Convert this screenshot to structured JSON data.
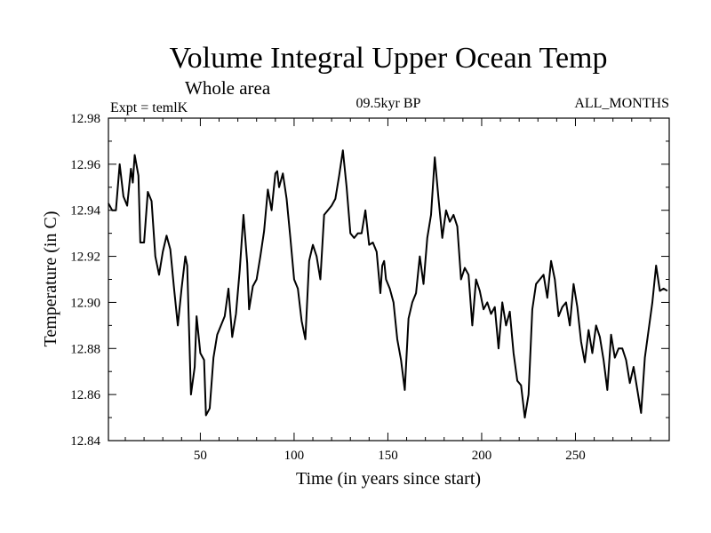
{
  "chart_data": {
    "type": "line",
    "title": "Volume Integral Upper Ocean Temp",
    "subtitle": "Whole area",
    "left_annotation": "Expt = temlK",
    "center_annotation": "09.5kyr BP",
    "right_annotation": "ALL_MONTHS",
    "xlabel": "Time (in years since start)",
    "ylabel": "Temperature (in C)",
    "xlim": [
      1,
      300
    ],
    "ylim": [
      12.84,
      12.98
    ],
    "xticks": [
      50,
      100,
      150,
      200,
      250
    ],
    "xtick_labels": [
      "50",
      "100",
      "150",
      "200",
      "250"
    ],
    "yticks": [
      12.84,
      12.86,
      12.88,
      12.9,
      12.92,
      12.94,
      12.96,
      12.98
    ],
    "ytick_labels": [
      "12.84",
      "12.86",
      "12.88",
      "12.90",
      "12.92",
      "12.94",
      "12.96",
      "12.98"
    ],
    "grid": false,
    "series": [
      {
        "name": "Volume Integral Upper Ocean Temp",
        "color": "#000000",
        "points": [
          [
            1,
            12.943
          ],
          [
            3,
            12.94
          ],
          [
            5,
            12.94
          ],
          [
            7,
            12.96
          ],
          [
            9,
            12.946
          ],
          [
            11,
            12.942
          ],
          [
            13,
            12.958
          ],
          [
            14,
            12.952
          ],
          [
            15,
            12.964
          ],
          [
            17,
            12.955
          ],
          [
            18,
            12.926
          ],
          [
            20,
            12.926
          ],
          [
            22,
            12.948
          ],
          [
            24,
            12.944
          ],
          [
            26,
            12.92
          ],
          [
            28,
            12.912
          ],
          [
            30,
            12.922
          ],
          [
            32,
            12.929
          ],
          [
            34,
            12.923
          ],
          [
            36,
            12.906
          ],
          [
            38,
            12.89
          ],
          [
            40,
            12.906
          ],
          [
            42,
            12.92
          ],
          [
            43,
            12.916
          ],
          [
            45,
            12.86
          ],
          [
            47,
            12.872
          ],
          [
            48,
            12.894
          ],
          [
            50,
            12.878
          ],
          [
            52,
            12.875
          ],
          [
            53,
            12.851
          ],
          [
            55,
            12.854
          ],
          [
            57,
            12.876
          ],
          [
            59,
            12.886
          ],
          [
            61,
            12.89
          ],
          [
            63,
            12.894
          ],
          [
            65,
            12.906
          ],
          [
            67,
            12.885
          ],
          [
            69,
            12.895
          ],
          [
            71,
            12.914
          ],
          [
            73,
            12.938
          ],
          [
            75,
            12.917
          ],
          [
            76,
            12.897
          ],
          [
            78,
            12.907
          ],
          [
            80,
            12.91
          ],
          [
            82,
            12.92
          ],
          [
            84,
            12.931
          ],
          [
            86,
            12.949
          ],
          [
            88,
            12.94
          ],
          [
            90,
            12.956
          ],
          [
            91,
            12.957
          ],
          [
            92,
            12.95
          ],
          [
            94,
            12.956
          ],
          [
            96,
            12.945
          ],
          [
            98,
            12.928
          ],
          [
            100,
            12.91
          ],
          [
            102,
            12.906
          ],
          [
            104,
            12.892
          ],
          [
            106,
            12.884
          ],
          [
            108,
            12.918
          ],
          [
            110,
            12.925
          ],
          [
            112,
            12.92
          ],
          [
            114,
            12.91
          ],
          [
            116,
            12.938
          ],
          [
            118,
            12.94
          ],
          [
            120,
            12.942
          ],
          [
            122,
            12.945
          ],
          [
            124,
            12.955
          ],
          [
            126,
            12.966
          ],
          [
            128,
            12.95
          ],
          [
            130,
            12.93
          ],
          [
            132,
            12.928
          ],
          [
            134,
            12.93
          ],
          [
            136,
            12.93
          ],
          [
            138,
            12.94
          ],
          [
            140,
            12.925
          ],
          [
            142,
            12.926
          ],
          [
            144,
            12.922
          ],
          [
            146,
            12.904
          ],
          [
            147,
            12.916
          ],
          [
            148,
            12.918
          ],
          [
            149,
            12.91
          ],
          [
            151,
            12.906
          ],
          [
            153,
            12.9
          ],
          [
            155,
            12.884
          ],
          [
            157,
            12.875
          ],
          [
            159,
            12.862
          ],
          [
            161,
            12.893
          ],
          [
            163,
            12.9
          ],
          [
            165,
            12.904
          ],
          [
            167,
            12.92
          ],
          [
            169,
            12.908
          ],
          [
            171,
            12.928
          ],
          [
            173,
            12.938
          ],
          [
            175,
            12.963
          ],
          [
            177,
            12.945
          ],
          [
            179,
            12.928
          ],
          [
            181,
            12.94
          ],
          [
            183,
            12.935
          ],
          [
            185,
            12.938
          ],
          [
            187,
            12.933
          ],
          [
            189,
            12.91
          ],
          [
            191,
            12.915
          ],
          [
            193,
            12.912
          ],
          [
            195,
            12.89
          ],
          [
            197,
            12.91
          ],
          [
            199,
            12.905
          ],
          [
            201,
            12.897
          ],
          [
            203,
            12.9
          ],
          [
            205,
            12.895
          ],
          [
            207,
            12.898
          ],
          [
            209,
            12.88
          ],
          [
            211,
            12.9
          ],
          [
            213,
            12.89
          ],
          [
            215,
            12.896
          ],
          [
            217,
            12.878
          ],
          [
            219,
            12.866
          ],
          [
            221,
            12.864
          ],
          [
            223,
            12.85
          ],
          [
            225,
            12.86
          ],
          [
            227,
            12.897
          ],
          [
            229,
            12.908
          ],
          [
            231,
            12.91
          ],
          [
            233,
            12.912
          ],
          [
            235,
            12.902
          ],
          [
            237,
            12.918
          ],
          [
            239,
            12.91
          ],
          [
            241,
            12.894
          ],
          [
            243,
            12.898
          ],
          [
            245,
            12.9
          ],
          [
            247,
            12.89
          ],
          [
            249,
            12.908
          ],
          [
            251,
            12.898
          ],
          [
            253,
            12.883
          ],
          [
            255,
            12.874
          ],
          [
            257,
            12.888
          ],
          [
            259,
            12.878
          ],
          [
            261,
            12.89
          ],
          [
            263,
            12.885
          ],
          [
            265,
            12.875
          ],
          [
            267,
            12.862
          ],
          [
            269,
            12.886
          ],
          [
            271,
            12.876
          ],
          [
            273,
            12.88
          ],
          [
            275,
            12.88
          ],
          [
            277,
            12.875
          ],
          [
            279,
            12.865
          ],
          [
            281,
            12.872
          ],
          [
            283,
            12.862
          ],
          [
            285,
            12.852
          ],
          [
            287,
            12.876
          ],
          [
            289,
            12.888
          ],
          [
            291,
            12.9
          ],
          [
            293,
            12.916
          ],
          [
            295,
            12.905
          ],
          [
            297,
            12.906
          ],
          [
            299,
            12.905
          ]
        ]
      }
    ]
  }
}
